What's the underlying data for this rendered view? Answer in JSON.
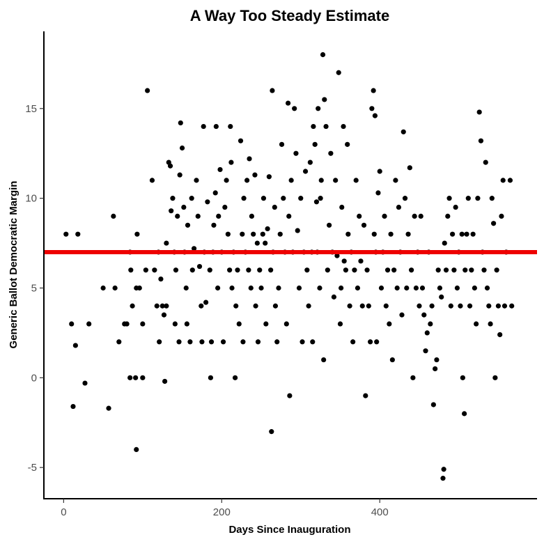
{
  "chart_data": {
    "type": "scatter",
    "title": "A Way Too Steady Estimate",
    "xlabel": "Days Since Inauguration",
    "ylabel": "Generic Ballot Democratic Margin",
    "xlim": [
      -25,
      599
    ],
    "ylim": [
      -6.74,
      19.3
    ],
    "xticks": [
      0,
      200,
      400
    ],
    "xtick_labels": [
      "0",
      "200",
      "400"
    ],
    "yticks": [
      -5,
      0,
      5,
      10,
      15
    ],
    "ytick_labels": [
      "-5",
      "0",
      "5",
      "10",
      "15"
    ],
    "grid": false,
    "hline": {
      "y": 7,
      "color": "#ee0000"
    },
    "point_color": "#000000",
    "points": [
      [
        3,
        8
      ],
      [
        10,
        3
      ],
      [
        12,
        -1.6
      ],
      [
        15,
        1.8
      ],
      [
        18,
        8
      ],
      [
        27,
        -0.3
      ],
      [
        32,
        3
      ],
      [
        50,
        5
      ],
      [
        57,
        -1.7
      ],
      [
        63,
        9
      ],
      [
        65,
        5
      ],
      [
        70,
        2
      ],
      [
        77,
        3
      ],
      [
        80,
        3
      ],
      [
        84,
        7
      ],
      [
        85,
        6
      ],
      [
        87,
        4
      ],
      [
        84,
        0
      ],
      [
        91,
        0
      ],
      [
        92,
        -4
      ],
      [
        93,
        8
      ],
      [
        92,
        5
      ],
      [
        96,
        5
      ],
      [
        100,
        0
      ],
      [
        100,
        3
      ],
      [
        104,
        6
      ],
      [
        106,
        16
      ],
      [
        112,
        11
      ],
      [
        115,
        6
      ],
      [
        118,
        4
      ],
      [
        120,
        7
      ],
      [
        121,
        2
      ],
      [
        123,
        5.5
      ],
      [
        125,
        4
      ],
      [
        127,
        3.5
      ],
      [
        130,
        4
      ],
      [
        128,
        -0.2
      ],
      [
        130,
        7.5
      ],
      [
        133,
        12
      ],
      [
        135,
        11.8
      ],
      [
        136,
        9.3
      ],
      [
        138,
        10
      ],
      [
        140,
        7
      ],
      [
        141,
        3
      ],
      [
        142,
        6
      ],
      [
        144,
        9
      ],
      [
        146,
        2
      ],
      [
        147,
        11.3
      ],
      [
        148,
        14.2
      ],
      [
        150,
        12.8
      ],
      [
        152,
        9.5
      ],
      [
        153,
        7
      ],
      [
        155,
        5
      ],
      [
        156,
        3
      ],
      [
        157,
        8.5
      ],
      [
        160,
        2
      ],
      [
        162,
        10
      ],
      [
        163,
        6
      ],
      [
        165,
        7.2
      ],
      [
        168,
        11
      ],
      [
        170,
        9
      ],
      [
        172,
        6.2
      ],
      [
        174,
        4
      ],
      [
        175,
        2
      ],
      [
        177,
        14
      ],
      [
        178,
        7
      ],
      [
        180,
        4.2
      ],
      [
        182,
        9.8
      ],
      [
        185,
        6
      ],
      [
        186,
        0
      ],
      [
        187,
        2
      ],
      [
        189,
        7
      ],
      [
        190,
        8.5
      ],
      [
        192,
        10.3
      ],
      [
        193,
        14
      ],
      [
        195,
        5
      ],
      [
        196,
        9
      ],
      [
        198,
        11.6
      ],
      [
        200,
        7
      ],
      [
        202,
        2
      ],
      [
        204,
        9.5
      ],
      [
        206,
        11
      ],
      [
        208,
        8
      ],
      [
        210,
        6
      ],
      [
        211,
        14
      ],
      [
        212,
        12
      ],
      [
        213,
        5
      ],
      [
        215,
        7
      ],
      [
        217,
        0
      ],
      [
        218,
        4
      ],
      [
        220,
        6
      ],
      [
        222,
        3
      ],
      [
        224,
        13.2
      ],
      [
        226,
        8
      ],
      [
        227,
        2
      ],
      [
        228,
        10
      ],
      [
        230,
        7
      ],
      [
        232,
        11
      ],
      [
        234,
        6
      ],
      [
        235,
        12.2
      ],
      [
        237,
        5
      ],
      [
        238,
        9
      ],
      [
        240,
        8
      ],
      [
        242,
        11.3
      ],
      [
        243,
        4
      ],
      [
        245,
        7.5
      ],
      [
        246,
        2
      ],
      [
        248,
        6
      ],
      [
        250,
        5
      ],
      [
        252,
        8
      ],
      [
        253,
        10
      ],
      [
        255,
        7.5
      ],
      [
        256,
        3
      ],
      [
        258,
        8.3
      ],
      [
        260,
        11.2
      ],
      [
        262,
        6
      ],
      [
        263,
        -3
      ],
      [
        264,
        16
      ],
      [
        265,
        7
      ],
      [
        267,
        9.5
      ],
      [
        268,
        4
      ],
      [
        270,
        2
      ],
      [
        272,
        5
      ],
      [
        274,
        8
      ],
      [
        276,
        13
      ],
      [
        278,
        10
      ],
      [
        280,
        7
      ],
      [
        282,
        3
      ],
      [
        284,
        15.3
      ],
      [
        285,
        9
      ],
      [
        286,
        -1
      ],
      [
        288,
        11
      ],
      [
        290,
        7
      ],
      [
        292,
        15
      ],
      [
        294,
        12.5
      ],
      [
        296,
        8.2
      ],
      [
        298,
        5
      ],
      [
        300,
        10
      ],
      [
        302,
        2
      ],
      [
        304,
        7
      ],
      [
        306,
        11.5
      ],
      [
        308,
        6
      ],
      [
        310,
        4
      ],
      [
        312,
        12
      ],
      [
        314,
        7
      ],
      [
        315,
        2
      ],
      [
        316,
        14
      ],
      [
        318,
        13
      ],
      [
        320,
        9.8
      ],
      [
        321,
        7
      ],
      [
        322,
        15
      ],
      [
        324,
        5
      ],
      [
        325,
        10
      ],
      [
        326,
        11
      ],
      [
        328,
        18
      ],
      [
        329,
        1
      ],
      [
        330,
        15.5
      ],
      [
        332,
        14
      ],
      [
        334,
        6
      ],
      [
        336,
        8.5
      ],
      [
        338,
        12.5
      ],
      [
        340,
        7
      ],
      [
        342,
        4.5
      ],
      [
        344,
        11
      ],
      [
        346,
        6.8
      ],
      [
        348,
        17
      ],
      [
        350,
        3
      ],
      [
        351,
        5
      ],
      [
        352,
        9.5
      ],
      [
        354,
        14
      ],
      [
        355,
        6.5
      ],
      [
        357,
        6
      ],
      [
        359,
        13
      ],
      [
        360,
        8
      ],
      [
        362,
        4
      ],
      [
        364,
        7
      ],
      [
        366,
        2
      ],
      [
        368,
        6
      ],
      [
        370,
        11
      ],
      [
        372,
        5
      ],
      [
        374,
        9
      ],
      [
        376,
        6.5
      ],
      [
        378,
        4
      ],
      [
        380,
        8.5
      ],
      [
        382,
        -1
      ],
      [
        384,
        6
      ],
      [
        386,
        4
      ],
      [
        388,
        2
      ],
      [
        390,
        15
      ],
      [
        392,
        16
      ],
      [
        393,
        8
      ],
      [
        394,
        14.6
      ],
      [
        395,
        7
      ],
      [
        396,
        2
      ],
      [
        398,
        10.3
      ],
      [
        400,
        11.5
      ],
      [
        402,
        5
      ],
      [
        404,
        7
      ],
      [
        406,
        9
      ],
      [
        408,
        4
      ],
      [
        410,
        6
      ],
      [
        412,
        3
      ],
      [
        414,
        8
      ],
      [
        416,
        1
      ],
      [
        418,
        6
      ],
      [
        420,
        11
      ],
      [
        422,
        5
      ],
      [
        424,
        9.5
      ],
      [
        426,
        7
      ],
      [
        428,
        3.5
      ],
      [
        430,
        13.7
      ],
      [
        432,
        10
      ],
      [
        434,
        5
      ],
      [
        436,
        8
      ],
      [
        438,
        11.7
      ],
      [
        440,
        6
      ],
      [
        442,
        0
      ],
      [
        444,
        9
      ],
      [
        446,
        5
      ],
      [
        448,
        7
      ],
      [
        450,
        4
      ],
      [
        452,
        9
      ],
      [
        454,
        5
      ],
      [
        456,
        3.5
      ],
      [
        458,
        1.5
      ],
      [
        460,
        2.5
      ],
      [
        462,
        7
      ],
      [
        464,
        3
      ],
      [
        466,
        4
      ],
      [
        468,
        -1.5
      ],
      [
        470,
        0.5
      ],
      [
        472,
        1
      ],
      [
        474,
        6
      ],
      [
        476,
        5
      ],
      [
        478,
        4.5
      ],
      [
        480,
        -5.6
      ],
      [
        481,
        -5.1
      ],
      [
        482,
        7.5
      ],
      [
        484,
        6
      ],
      [
        486,
        9
      ],
      [
        488,
        10
      ],
      [
        490,
        4
      ],
      [
        492,
        8
      ],
      [
        494,
        6
      ],
      [
        496,
        9.5
      ],
      [
        498,
        5
      ],
      [
        500,
        7
      ],
      [
        502,
        4
      ],
      [
        504,
        8
      ],
      [
        505,
        0
      ],
      [
        507,
        -2
      ],
      [
        508,
        6
      ],
      [
        510,
        8
      ],
      [
        512,
        10
      ],
      [
        514,
        4
      ],
      [
        516,
        6
      ],
      [
        518,
        8
      ],
      [
        520,
        5
      ],
      [
        522,
        3
      ],
      [
        524,
        10
      ],
      [
        526,
        14.8
      ],
      [
        528,
        13.2
      ],
      [
        530,
        7
      ],
      [
        532,
        6
      ],
      [
        534,
        12
      ],
      [
        536,
        5
      ],
      [
        538,
        4
      ],
      [
        540,
        3
      ],
      [
        542,
        10
      ],
      [
        544,
        8.6
      ],
      [
        546,
        0
      ],
      [
        548,
        6
      ],
      [
        550,
        4
      ],
      [
        552,
        2.4
      ],
      [
        554,
        9
      ],
      [
        556,
        11
      ],
      [
        558,
        4
      ],
      [
        560,
        7
      ],
      [
        565,
        11
      ],
      [
        567,
        4
      ]
    ]
  }
}
